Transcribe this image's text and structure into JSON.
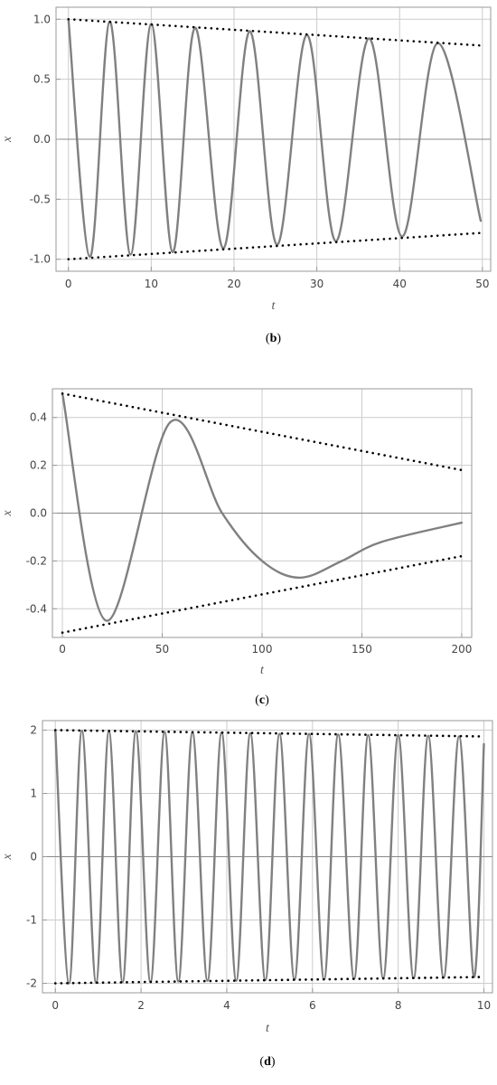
{
  "chart_data": [
    {
      "type": "line",
      "caption_letter": "b",
      "xlabel": "t",
      "ylabel": "x",
      "xlim": [
        -1.5,
        51
      ],
      "ylim": [
        -1.1,
        1.1
      ],
      "x_ticks": [
        0,
        10,
        20,
        30,
        40,
        50
      ],
      "x_tick_labels": [
        "0",
        "10",
        "20",
        "30",
        "40",
        "50"
      ],
      "y_ticks": [
        -1.0,
        -0.5,
        0.0,
        0.5,
        1.0
      ],
      "y_tick_labels": [
        "-1.0",
        "-0.5",
        "0.0",
        "0.5",
        "1.0"
      ],
      "grid": true,
      "series": [
        {
          "style": "solid",
          "color": "#808080",
          "x": [
            0,
            2.6,
            5.0,
            7.5,
            10.0,
            12.6,
            15.3,
            18.7,
            21.9,
            25.2,
            28.8,
            32.3,
            36.3,
            40.3,
            44.6,
            49.8
          ],
          "y": [
            1.0,
            -0.98,
            0.98,
            -0.96,
            0.96,
            -0.94,
            0.93,
            -0.91,
            0.9,
            -0.88,
            0.87,
            -0.85,
            0.84,
            -0.81,
            0.8,
            -0.68
          ]
        },
        {
          "style": "dotted",
          "color": "#000000",
          "x": [
            0,
            50
          ],
          "y": [
            1.0,
            0.78
          ]
        },
        {
          "style": "dotted",
          "color": "#000000",
          "x": [
            0,
            50
          ],
          "y": [
            -1.0,
            -0.78
          ]
        }
      ]
    },
    {
      "type": "line",
      "caption_letter": "c",
      "xlabel": "t",
      "ylabel": "x",
      "xlim": [
        -5,
        205
      ],
      "ylim": [
        -0.52,
        0.52
      ],
      "x_ticks": [
        0,
        50,
        100,
        150,
        200
      ],
      "x_tick_labels": [
        "0",
        "50",
        "100",
        "150",
        "200"
      ],
      "y_ticks": [
        -0.4,
        -0.2,
        0.0,
        0.2,
        0.4
      ],
      "y_tick_labels": [
        "-0.4",
        "-0.2",
        "0.0",
        "0.2",
        "0.4"
      ],
      "grid": true,
      "series": [
        {
          "style": "solid",
          "color": "#808080",
          "x": [
            0,
            22,
            54,
            80,
            100,
            119,
            140,
            160,
            200
          ],
          "y": [
            0.5,
            -0.45,
            0.38,
            0.0,
            -0.2,
            -0.27,
            -0.2,
            -0.12,
            -0.04
          ]
        },
        {
          "style": "dotted",
          "color": "#000000",
          "x": [
            0,
            200
          ],
          "y": [
            0.5,
            0.18
          ]
        },
        {
          "style": "dotted",
          "color": "#000000",
          "x": [
            0,
            200
          ],
          "y": [
            -0.5,
            -0.18
          ]
        }
      ]
    },
    {
      "type": "line",
      "caption_letter": "d",
      "xlabel": "t",
      "ylabel": "x",
      "xlim": [
        -0.3,
        10.2
      ],
      "ylim": [
        -2.15,
        2.15
      ],
      "x_ticks": [
        0,
        2,
        4,
        6,
        8,
        10
      ],
      "x_tick_labels": [
        "0",
        "2",
        "4",
        "6",
        "8",
        "10"
      ],
      "y_ticks": [
        -2,
        -1,
        0,
        1,
        2
      ],
      "y_tick_labels": [
        "-2",
        "-1",
        "0",
        "1",
        "2"
      ],
      "grid": true,
      "series": [
        {
          "style": "solid",
          "color": "#808080",
          "x": [
            0,
            0.32,
            0.62,
            0.95,
            1.25,
            1.57,
            1.88,
            2.22,
            2.55,
            2.87,
            3.2,
            3.55,
            3.88,
            4.22,
            4.55,
            4.9,
            5.23,
            5.58,
            5.92,
            6.27,
            6.6,
            6.97,
            7.3,
            7.65,
            8.0,
            8.36,
            8.7,
            9.06,
            9.42,
            9.77,
            10.0
          ],
          "y": [
            2.0,
            -2.0,
            1.99,
            -1.99,
            1.98,
            -1.98,
            1.98,
            -1.98,
            1.97,
            -1.97,
            1.96,
            -1.96,
            1.96,
            -1.96,
            1.95,
            -1.95,
            1.94,
            -1.94,
            1.94,
            -1.94,
            1.93,
            -1.93,
            1.92,
            -1.92,
            1.92,
            -1.92,
            1.91,
            -1.91,
            1.9,
            -1.9,
            1.78
          ]
        },
        {
          "style": "dotted",
          "color": "#000000",
          "x": [
            0,
            10
          ],
          "y": [
            2.0,
            1.9
          ]
        },
        {
          "style": "dotted",
          "color": "#000000",
          "x": [
            0,
            10
          ],
          "y": [
            -2.0,
            -1.9
          ]
        }
      ]
    }
  ]
}
